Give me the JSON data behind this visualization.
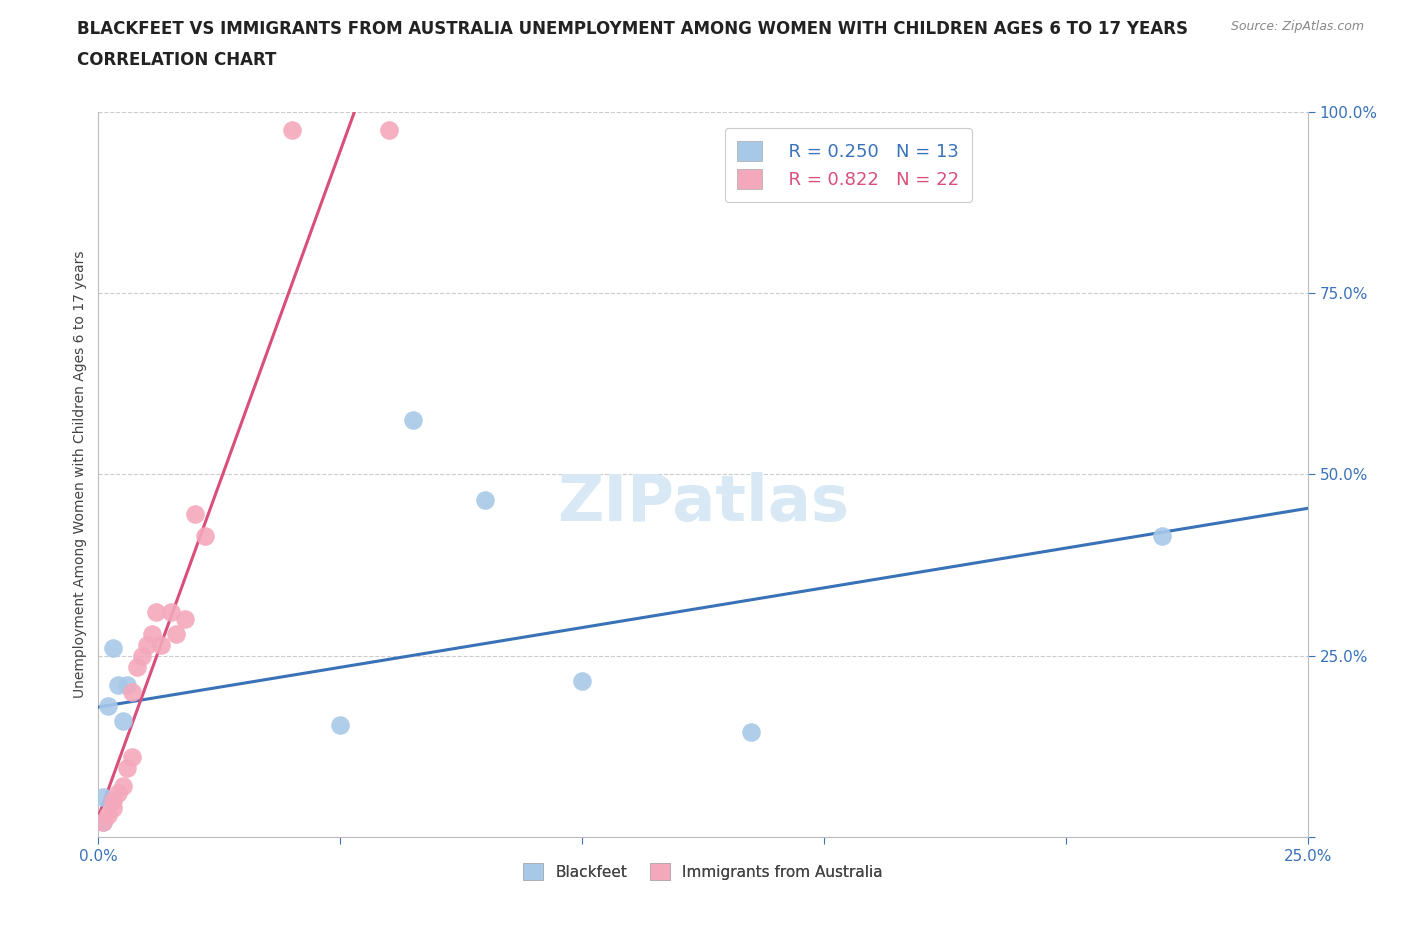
{
  "title_line1": "BLACKFEET VS IMMIGRANTS FROM AUSTRALIA UNEMPLOYMENT AMONG WOMEN WITH CHILDREN AGES 6 TO 17 YEARS",
  "title_line2": "CORRELATION CHART",
  "source_text": "Source: ZipAtlas.com",
  "ylabel": "Unemployment Among Women with Children Ages 6 to 17 years",
  "xlim": [
    0,
    0.25
  ],
  "ylim": [
    0,
    1.0
  ],
  "blackfeet_color": "#A8C8E8",
  "australia_color": "#F4A8BC",
  "blackfeet_line_color": "#3A72B8",
  "australia_line_color": "#D94F7A",
  "blackfeet_R": 0.25,
  "blackfeet_N": 13,
  "australia_R": 0.822,
  "australia_N": 22,
  "bf_x": [
    0.001,
    0.001,
    0.002,
    0.003,
    0.004,
    0.005,
    0.006,
    0.05,
    0.065,
    0.08,
    0.1,
    0.135,
    0.22
  ],
  "bf_y": [
    0.02,
    0.055,
    0.18,
    0.26,
    0.21,
    0.16,
    0.21,
    0.155,
    0.575,
    0.465,
    0.215,
    0.145,
    0.415
  ],
  "au_x": [
    0.001,
    0.002,
    0.003,
    0.003,
    0.004,
    0.005,
    0.006,
    0.007,
    0.007,
    0.008,
    0.009,
    0.01,
    0.011,
    0.012,
    0.013,
    0.015,
    0.016,
    0.018,
    0.02,
    0.022,
    0.04,
    0.06
  ],
  "au_y": [
    0.02,
    0.03,
    0.04,
    0.05,
    0.06,
    0.07,
    0.095,
    0.11,
    0.2,
    0.235,
    0.25,
    0.265,
    0.28,
    0.31,
    0.265,
    0.31,
    0.28,
    0.3,
    0.445,
    0.415,
    0.975,
    0.975
  ],
  "title_fontsize": 12,
  "label_fontsize": 10,
  "tick_fontsize": 11,
  "legend_fontsize": 13,
  "background_color": "#FFFFFF",
  "grid_color": "#CCCCCC",
  "watermark_color": "#D8E8F5"
}
